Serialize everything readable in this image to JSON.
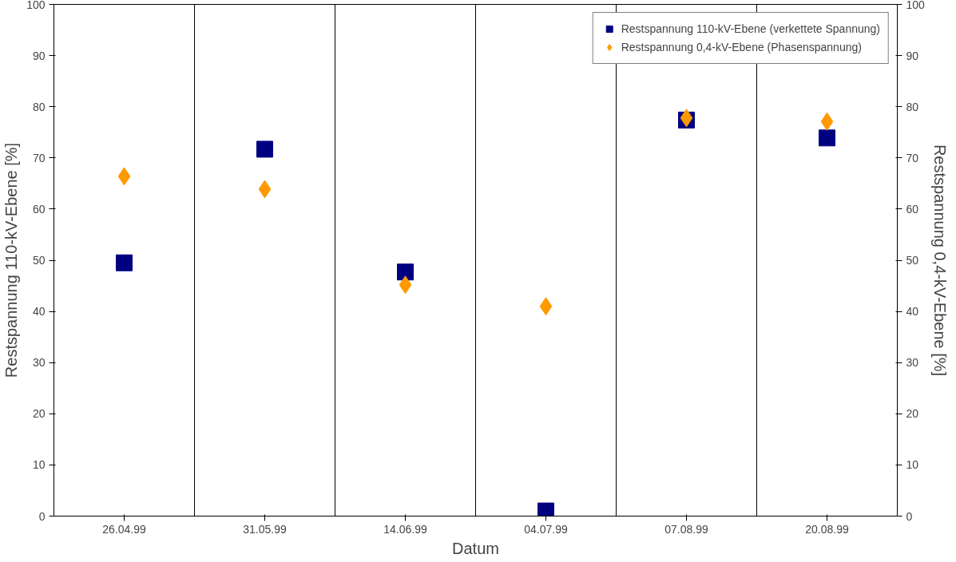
{
  "chart_data": {
    "type": "scatter",
    "xlabel": "Datum",
    "ylabel": "Restspannung 110-kV-Ebene [%]",
    "y2label": "Restspannung 0,4-kV-Ebene [%]",
    "categories": [
      "26.04.99",
      "31.05.99",
      "14.06.99",
      "04.07.99",
      "07.08.99",
      "20.08.99"
    ],
    "series": [
      {
        "name": "Restspannung 110-kV-Ebene (verkettete Spannung)",
        "color": "#000080",
        "marker": "square",
        "values": [
          49.5,
          71.7,
          47.7,
          1,
          77.4,
          73.9
        ]
      },
      {
        "name": "Restspannung 0,4-kV-Ebene (Phasenspannung)",
        "color": "#ff9900",
        "marker": "diamond",
        "values": [
          66.4,
          63.9,
          45.2,
          41.0,
          77.8,
          77.1
        ]
      }
    ],
    "ylim": [
      0,
      100
    ],
    "yticks": [
      0,
      10,
      20,
      30,
      40,
      50,
      60,
      70,
      80,
      90,
      100
    ],
    "y2lim": [
      0,
      100
    ],
    "y2ticks": [
      0,
      10,
      20,
      30,
      40,
      50,
      60,
      70,
      80,
      90,
      100
    ],
    "grid": "x",
    "legend": "top right"
  }
}
